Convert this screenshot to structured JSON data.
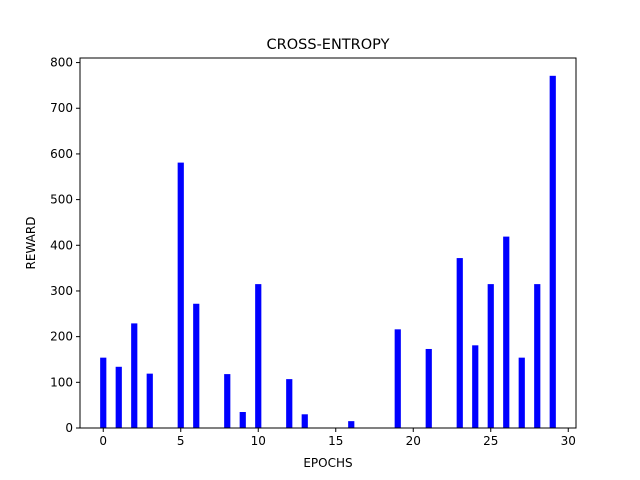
{
  "chart_data": {
    "type": "bar",
    "title": "CROSS-ENTROPY",
    "xlabel": "EPOCHS",
    "ylabel": "REWARD",
    "x": [
      0,
      1,
      2,
      3,
      4,
      5,
      6,
      7,
      8,
      9,
      10,
      11,
      12,
      13,
      14,
      15,
      16,
      17,
      18,
      19,
      20,
      21,
      22,
      23,
      24,
      25,
      26,
      27,
      28,
      29
    ],
    "values": [
      154,
      134,
      229,
      119,
      0,
      581,
      272,
      0,
      118,
      35,
      315,
      0,
      107,
      30,
      0,
      0,
      15,
      0,
      0,
      216,
      0,
      173,
      0,
      372,
      181,
      315,
      419,
      154,
      315,
      771
    ],
    "xlim": [
      -1.5,
      30.5
    ],
    "ylim": [
      0,
      810
    ],
    "xticks": [
      0,
      5,
      10,
      15,
      20,
      25,
      30
    ],
    "yticks": [
      0,
      100,
      200,
      300,
      400,
      500,
      600,
      700,
      800
    ],
    "bar_width": 0.4,
    "bar_color": "#0000ff",
    "grid": false,
    "legend": "none"
  }
}
